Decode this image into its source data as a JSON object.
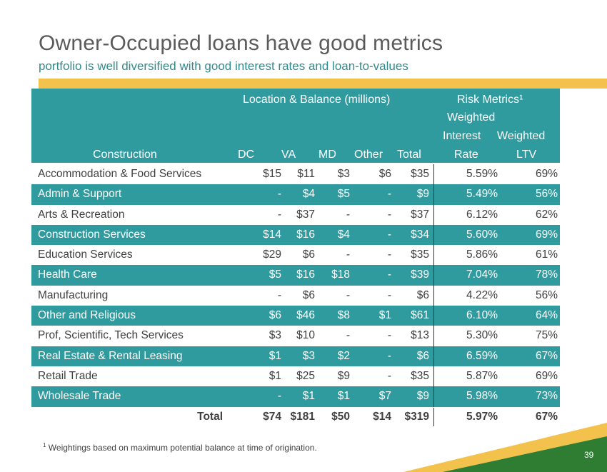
{
  "slide": {
    "title": "Owner-Occupied loans have good metrics",
    "subtitle": "portfolio is well diversified with good interest rates and loan-to-values",
    "page_number": "39",
    "footnote_marker": "1",
    "footnote_text": " Weightings based on maximum potential balance at time of origination.",
    "colors": {
      "teal": "#2f9b9f",
      "gold": "#f2c24d",
      "green": "#2e7d32"
    }
  },
  "table": {
    "group_location": "Location & Balance (millions)",
    "group_risk": "Risk Metrics¹",
    "col_construction": "Construction",
    "col_dc": "DC",
    "col_va": "VA",
    "col_md": "MD",
    "col_other": "Other",
    "col_total": "Total",
    "col_rate_l1": "Weighted",
    "col_rate_l2": "Interest",
    "col_rate_l3": "Rate",
    "col_ltv_l1": "Weighted",
    "col_ltv_l2": "LTV",
    "rows": [
      {
        "name": "Accommodation & Food Services",
        "dc": "$15",
        "va": "$11",
        "md": "$3",
        "other": "$6",
        "total": "$35",
        "rate": "5.59%",
        "ltv": "69%"
      },
      {
        "name": "Admin & Support",
        "dc": "-",
        "va": "$4",
        "md": "$5",
        "other": "-",
        "total": "$9",
        "rate": "5.49%",
        "ltv": "56%"
      },
      {
        "name": "Arts & Recreation",
        "dc": "-",
        "va": "$37",
        "md": "-",
        "other": "-",
        "total": "$37",
        "rate": "6.12%",
        "ltv": "62%"
      },
      {
        "name": "Construction Services",
        "dc": "$14",
        "va": "$16",
        "md": "$4",
        "other": "-",
        "total": "$34",
        "rate": "5.60%",
        "ltv": "69%"
      },
      {
        "name": "Education Services",
        "dc": "$29",
        "va": "$6",
        "md": "-",
        "other": "-",
        "total": "$35",
        "rate": "5.86%",
        "ltv": "61%"
      },
      {
        "name": "Health Care",
        "dc": "$5",
        "va": "$16",
        "md": "$18",
        "other": "-",
        "total": "$39",
        "rate": "7.04%",
        "ltv": "78%"
      },
      {
        "name": "Manufacturing",
        "dc": "-",
        "va": "$6",
        "md": "-",
        "other": "-",
        "total": "$6",
        "rate": "4.22%",
        "ltv": "56%"
      },
      {
        "name": "Other and Religious",
        "dc": "$6",
        "va": "$46",
        "md": "$8",
        "other": "$1",
        "total": "$61",
        "rate": "6.10%",
        "ltv": "64%"
      },
      {
        "name": "Prof, Scientific, Tech Services",
        "dc": "$3",
        "va": "$10",
        "md": "-",
        "other": "-",
        "total": "$13",
        "rate": "5.30%",
        "ltv": "75%"
      },
      {
        "name": "Real Estate & Rental Leasing",
        "dc": "$1",
        "va": "$3",
        "md": "$2",
        "other": "-",
        "total": "$6",
        "rate": "6.59%",
        "ltv": "67%"
      },
      {
        "name": "Retail Trade",
        "dc": "$1",
        "va": "$25",
        "md": "$9",
        "other": "-",
        "total": "$35",
        "rate": "5.87%",
        "ltv": "69%"
      },
      {
        "name": "Wholesale Trade",
        "dc": "-",
        "va": "$1",
        "md": "$1",
        "other": "$7",
        "total": "$9",
        "rate": "5.98%",
        "ltv": "73%"
      }
    ],
    "totals": {
      "label": "Total",
      "dc": "$74",
      "va": "$181",
      "md": "$50",
      "other": "$14",
      "total": "$319",
      "rate": "5.97%",
      "ltv": "67%"
    }
  }
}
